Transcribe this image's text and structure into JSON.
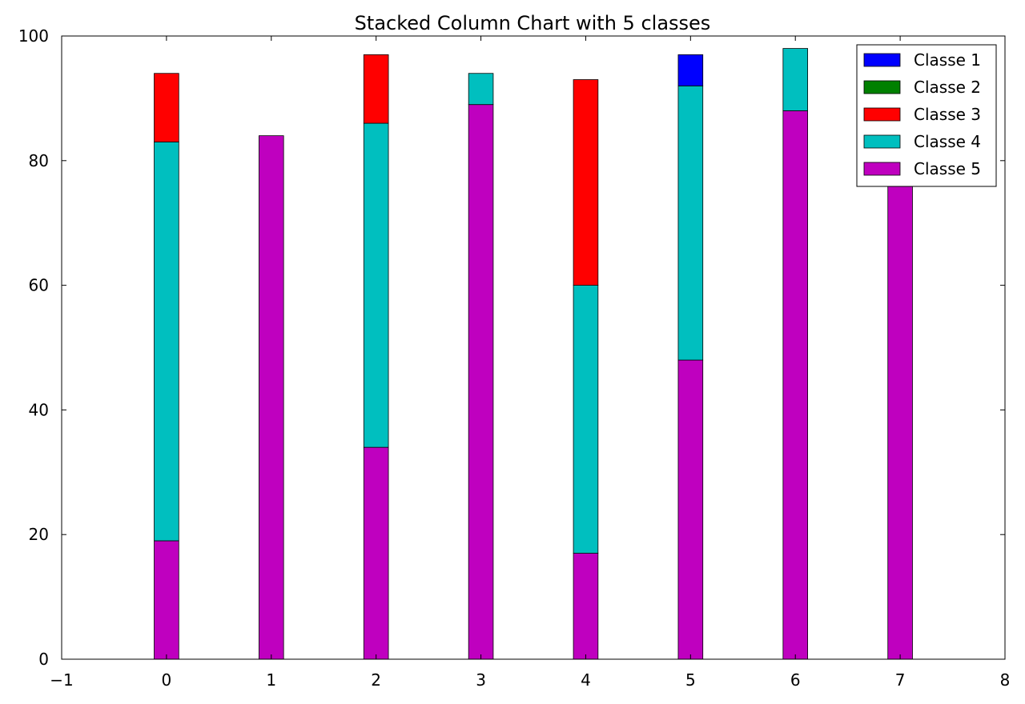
{
  "chart_data": {
    "type": "bar",
    "stacked": true,
    "title": "Stacked Column Chart with 5 classes",
    "xlabel": "",
    "ylabel": "",
    "x": [
      0,
      1,
      2,
      3,
      4,
      5,
      6,
      7
    ],
    "xlim": [
      -1,
      8
    ],
    "ylim": [
      0,
      100
    ],
    "xticks": [
      -1,
      0,
      1,
      2,
      3,
      4,
      5,
      6,
      7,
      8
    ],
    "yticks": [
      0,
      20,
      40,
      60,
      80,
      100
    ],
    "xtick_labels": [
      "−1",
      "0",
      "1",
      "2",
      "3",
      "4",
      "5",
      "6",
      "7",
      "8"
    ],
    "ytick_labels": [
      "0",
      "20",
      "40",
      "60",
      "80",
      "100"
    ],
    "grid": false,
    "legend_position": "top-right",
    "series": [
      {
        "name": "Classe 1",
        "color": "#0000ff",
        "values": [
          0,
          0,
          0,
          0,
          0,
          5,
          0,
          0
        ]
      },
      {
        "name": "Classe 2",
        "color": "#008000",
        "values": [
          0,
          0,
          0,
          0,
          0,
          0,
          0,
          0
        ]
      },
      {
        "name": "Classe 3",
        "color": "#ff0000",
        "values": [
          11,
          0,
          11,
          0,
          33,
          0,
          0,
          0
        ]
      },
      {
        "name": "Classe 4",
        "color": "#00bfbf",
        "values": [
          64,
          0,
          52,
          5,
          43,
          44,
          10,
          0
        ]
      },
      {
        "name": "Classe 5",
        "color": "#bf00bf",
        "values": [
          19,
          84,
          34,
          89,
          17,
          48,
          88,
          88
        ]
      }
    ]
  }
}
